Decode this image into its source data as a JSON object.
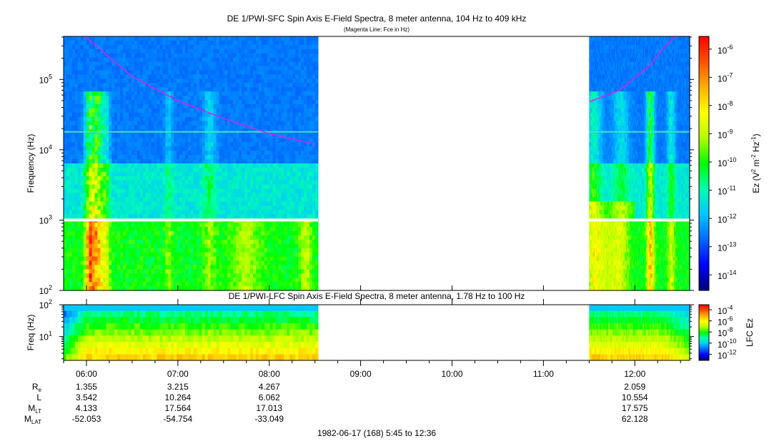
{
  "top_panel": {
    "title": "DE 1/PWI-SFC  Spin Axis E-Field Spectra, 8 meter antenna, 104 Hz to 409 kHz",
    "subtitle": "(Magenta Line: Fce in Hz)",
    "ylabel": "Frequency (Hz)",
    "y_ticks": [
      {
        "base": "10",
        "exp": "2",
        "value": 100
      },
      {
        "base": "10",
        "exp": "3",
        "value": 1000
      },
      {
        "base": "10",
        "exp": "4",
        "value": 10000
      },
      {
        "base": "10",
        "exp": "5",
        "value": 100000
      }
    ],
    "colorbar_label": "Ez (V² m⁻² Hz⁻¹)",
    "colorbar_ticks": [
      {
        "base": "10",
        "exp": "-6"
      },
      {
        "base": "10",
        "exp": "-7"
      },
      {
        "base": "10",
        "exp": "-8"
      },
      {
        "base": "10",
        "exp": "-9"
      },
      {
        "base": "10",
        "exp": "-10"
      },
      {
        "base": "10",
        "exp": "-11"
      },
      {
        "base": "10",
        "exp": "-12"
      },
      {
        "base": "10",
        "exp": "-13"
      },
      {
        "base": "10",
        "exp": "-14"
      }
    ]
  },
  "bottom_panel": {
    "title": "DE 1/PWI-LFC  Spin Axis E-Field Spectra, 8 meter antenna, 1.78 Hz to 100 Hz",
    "ylabel": "Freq (Hz)",
    "y_ticks": [
      {
        "base": "10",
        "exp": "1",
        "value": 10
      },
      {
        "base": "10",
        "exp": "2",
        "value": 100
      }
    ],
    "colorbar_label": "LFC Ez",
    "colorbar_ticks": [
      {
        "base": "10",
        "exp": "-4"
      },
      {
        "base": "10",
        "exp": "-6"
      },
      {
        "base": "10",
        "exp": "-8"
      },
      {
        "base": "10",
        "exp": "-10"
      },
      {
        "base": "10",
        "exp": "-12"
      }
    ]
  },
  "time_axis": {
    "tick_labels": [
      "06:00",
      "07:00",
      "08:00",
      "09:00",
      "10:00",
      "11:00",
      "12:00"
    ],
    "caption": "1982-06-17 (168) 5:45 to 12:36"
  },
  "ephemeris": {
    "row_labels": [
      {
        "main": "R",
        "sub": "e"
      },
      {
        "main": "L",
        "sub": ""
      },
      {
        "main": "M",
        "sub": "LT"
      },
      {
        "main": "M",
        "sub": "LAT"
      }
    ],
    "columns": [
      {
        "time": "06:00",
        "values": [
          "1.355",
          "3.542",
          "4.133",
          "-52.053"
        ]
      },
      {
        "time": "07:00",
        "values": [
          "3.215",
          "10.264",
          "17.564",
          "-54.754"
        ]
      },
      {
        "time": "08:00",
        "values": [
          "4.267",
          "6.062",
          "17.013",
          "-33.049"
        ]
      },
      {
        "time": "12:00",
        "values": [
          "2.059",
          "10.554",
          "17.575",
          "62.128"
        ]
      }
    ]
  },
  "chart_data": {
    "type": "heatmap",
    "panels": [
      {
        "name": "SFC",
        "time_range": [
          "05:45",
          "12:36"
        ],
        "y_scale": "log",
        "y_range_hz": [
          100,
          409000
        ],
        "data_intervals": [
          [
            "05:45",
            "08:32"
          ],
          [
            "11:30",
            "12:36"
          ]
        ],
        "gap_interval": [
          "08:32",
          "11:30"
        ],
        "colorbar_range": [
          "1e-14",
          "1e-6"
        ],
        "fce_line": {
          "color": "#dd22dd",
          "points": [
            [
              "05:59",
              409000
            ],
            [
              "06:30",
              110000
            ],
            [
              "07:00",
              50000
            ],
            [
              "07:30",
              28000
            ],
            [
              "08:00",
              17000
            ],
            [
              "08:30",
              12000
            ],
            [
              "11:30",
              48000
            ],
            [
              "11:50",
              70000
            ],
            [
              "12:10",
              160000
            ],
            [
              "12:20",
              300000
            ],
            [
              "12:27",
              409000
            ]
          ]
        }
      },
      {
        "name": "LFC",
        "time_range": [
          "05:45",
          "12:36"
        ],
        "y_scale": "log",
        "y_range_hz": [
          1.78,
          100
        ],
        "data_intervals": [
          [
            "05:45",
            "08:32"
          ],
          [
            "11:30",
            "12:36"
          ]
        ],
        "gap_interval": [
          "08:32",
          "11:30"
        ],
        "colorbar_range": [
          "1e-12",
          "1e-4"
        ]
      }
    ],
    "colormap": [
      "#00007a",
      "#0000ff",
      "#0066ff",
      "#00c8ff",
      "#00ffb0",
      "#00ff00",
      "#b4ff00",
      "#ffff00",
      "#ffb000",
      "#ff5000",
      "#ff0000"
    ]
  }
}
